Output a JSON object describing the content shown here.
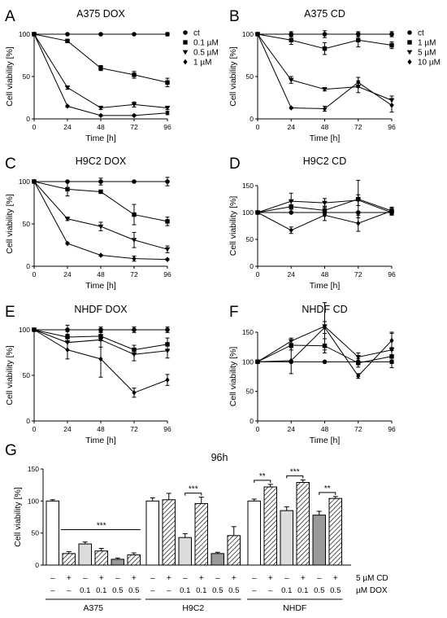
{
  "chart_data": [
    {
      "type": "line",
      "panel_letter": "A",
      "title": "A375 DOX",
      "xlabel": "Time [h]",
      "ylabel": "Cell viability [%]",
      "x": [
        0,
        24,
        48,
        72,
        96
      ],
      "xlim": [
        0,
        96
      ],
      "ylim": [
        0,
        100
      ],
      "xticks": [
        0,
        24,
        48,
        72,
        96
      ],
      "yticks": [
        0,
        50,
        100
      ],
      "legend": "right",
      "series": [
        {
          "name": "ct",
          "marker": "circle",
          "values": [
            100,
            100,
            100,
            100,
            100
          ],
          "err": [
            0,
            0,
            0,
            0,
            2
          ]
        },
        {
          "name": "0.1 µM",
          "marker": "square",
          "values": [
            100,
            92,
            60,
            52,
            43
          ],
          "err": [
            0,
            2,
            3,
            4,
            5
          ]
        },
        {
          "name": "0.5 µM",
          "marker": "triangle-down",
          "values": [
            100,
            37,
            13,
            17,
            13
          ],
          "err": [
            0,
            2,
            2,
            3,
            2
          ]
        },
        {
          "name": "1 µM",
          "marker": "diamond",
          "values": [
            100,
            15,
            4,
            4,
            7
          ],
          "err": [
            0,
            1,
            1,
            1,
            2
          ]
        }
      ]
    },
    {
      "type": "line",
      "panel_letter": "B",
      "title": "A375 CD",
      "xlabel": "Time [h]",
      "ylabel": "Cell viability [%]",
      "x": [
        0,
        24,
        48,
        72,
        96
      ],
      "xlim": [
        0,
        96
      ],
      "ylim": [
        0,
        100
      ],
      "xticks": [
        0,
        24,
        48,
        72,
        96
      ],
      "yticks": [
        0,
        50,
        100
      ],
      "legend": "right",
      "series": [
        {
          "name": "ct",
          "marker": "circle",
          "values": [
            100,
            100,
            100,
            100,
            100
          ],
          "err": [
            0,
            3,
            4,
            3,
            3
          ]
        },
        {
          "name": "1 µM",
          "marker": "square",
          "values": [
            100,
            93,
            83,
            93,
            87
          ],
          "err": [
            0,
            5,
            7,
            8,
            4
          ]
        },
        {
          "name": "5 µM",
          "marker": "triangle-down",
          "values": [
            100,
            46,
            35,
            38,
            22
          ],
          "err": [
            0,
            4,
            2,
            7,
            5
          ]
        },
        {
          "name": "10 µM",
          "marker": "diamond",
          "values": [
            100,
            13,
            12,
            43,
            16
          ],
          "err": [
            0,
            1,
            3,
            6,
            8
          ]
        }
      ]
    },
    {
      "type": "line",
      "panel_letter": "C",
      "title": "H9C2 DOX",
      "xlabel": "Time [h]",
      "ylabel": "Cell viability [%]",
      "x": [
        0,
        24,
        48,
        72,
        96
      ],
      "xlim": [
        0,
        96
      ],
      "ylim": [
        0,
        100
      ],
      "xticks": [
        0,
        24,
        48,
        72,
        96
      ],
      "yticks": [
        0,
        50,
        100
      ],
      "legend": "none",
      "series": [
        {
          "name": "ct",
          "marker": "circle",
          "values": [
            100,
            100,
            100,
            100,
            100
          ],
          "err": [
            0,
            0,
            4,
            0,
            5
          ]
        },
        {
          "name": "0.1 µM",
          "marker": "square",
          "values": [
            100,
            91,
            88,
            61,
            53
          ],
          "err": [
            0,
            8,
            2,
            12,
            5
          ]
        },
        {
          "name": "0.5 µM",
          "marker": "triangle-down",
          "values": [
            100,
            56,
            47,
            31,
            20
          ],
          "err": [
            0,
            2,
            5,
            9,
            4
          ]
        },
        {
          "name": "1 µM",
          "marker": "diamond",
          "values": [
            100,
            27,
            13,
            9,
            8
          ],
          "err": [
            0,
            1,
            1,
            3,
            1
          ]
        }
      ]
    },
    {
      "type": "line",
      "panel_letter": "D",
      "title": "H9C2 CD",
      "xlabel": "Time [h]",
      "ylabel": "Cell viability [%]",
      "x": [
        0,
        24,
        48,
        72,
        96
      ],
      "xlim": [
        0,
        96
      ],
      "ylim": [
        0,
        150
      ],
      "xticks": [
        0,
        24,
        48,
        72,
        96
      ],
      "yticks": [
        0,
        50,
        100,
        150
      ],
      "legend": "none",
      "series": [
        {
          "name": "ct",
          "marker": "circle",
          "values": [
            100,
            100,
            100,
            100,
            100
          ],
          "err": [
            0,
            0,
            0,
            0,
            3
          ]
        },
        {
          "name": "1 µM",
          "marker": "square",
          "values": [
            100,
            111,
            104,
            125,
            103
          ],
          "err": [
            0,
            10,
            8,
            35,
            5
          ]
        },
        {
          "name": "5 µM",
          "marker": "triangle-down",
          "values": [
            100,
            121,
            118,
            123,
            100
          ],
          "err": [
            0,
            15,
            8,
            10,
            5
          ]
        },
        {
          "name": "10 µM",
          "marker": "diamond",
          "values": [
            100,
            67,
            95,
            80,
            103
          ],
          "err": [
            0,
            6,
            10,
            15,
            7
          ]
        }
      ]
    },
    {
      "type": "line",
      "panel_letter": "E",
      "title": "NHDF DOX",
      "xlabel": "Time [h]",
      "ylabel": "Cell viability [%]",
      "x": [
        0,
        24,
        48,
        72,
        96
      ],
      "xlim": [
        0,
        96
      ],
      "ylim": [
        0,
        100
      ],
      "xticks": [
        0,
        24,
        48,
        72,
        96
      ],
      "yticks": [
        0,
        50,
        100
      ],
      "legend": "none",
      "series": [
        {
          "name": "ct",
          "marker": "circle",
          "values": [
            100,
            100,
            100,
            100,
            100
          ],
          "err": [
            0,
            5,
            3,
            3,
            3
          ]
        },
        {
          "name": "0.1 µM",
          "marker": "square",
          "values": [
            100,
            92,
            93,
            78,
            84
          ],
          "err": [
            0,
            6,
            5,
            5,
            7
          ]
        },
        {
          "name": "0.5 µM",
          "marker": "triangle-down",
          "values": [
            100,
            86,
            89,
            73,
            77
          ],
          "err": [
            0,
            8,
            8,
            7,
            8
          ]
        },
        {
          "name": "1 µM",
          "marker": "diamond",
          "values": [
            100,
            78,
            68,
            31,
            45
          ],
          "err": [
            0,
            10,
            20,
            5,
            6
          ]
        }
      ]
    },
    {
      "type": "line",
      "panel_letter": "F",
      "title": "NHDF CD",
      "xlabel": "Time [h]",
      "ylabel": "Cell viability [%]",
      "x": [
        0,
        24,
        48,
        72,
        96
      ],
      "xlim": [
        0,
        96
      ],
      "ylim": [
        0,
        150
      ],
      "xticks": [
        0,
        24,
        48,
        72,
        96
      ],
      "yticks": [
        0,
        50,
        100,
        150
      ],
      "legend": "none",
      "series": [
        {
          "name": "ct",
          "marker": "circle",
          "values": [
            100,
            100,
            100,
            100,
            100
          ],
          "err": [
            0,
            0,
            0,
            0,
            3
          ]
        },
        {
          "name": "1 µM",
          "marker": "square",
          "values": [
            100,
            128,
            127,
            98,
            109
          ],
          "err": [
            0,
            8,
            12,
            7,
            10
          ]
        },
        {
          "name": "5 µM",
          "marker": "triangle-down",
          "values": [
            100,
            135,
            160,
            108,
            120
          ],
          "err": [
            0,
            5,
            40,
            7,
            30
          ]
        },
        {
          "name": "10 µM",
          "marker": "diamond",
          "values": [
            100,
            102,
            158,
            76,
            136
          ],
          "err": [
            0,
            22,
            10,
            4,
            12
          ]
        }
      ]
    },
    {
      "type": "bar",
      "panel_letter": "G",
      "title": "96h",
      "ylabel": "Cell viability [%]",
      "ylim": [
        0,
        150
      ],
      "yticks": [
        0,
        50,
        100,
        150
      ],
      "row_labels": [
        "5 µM CD",
        "µM DOX"
      ],
      "groups": [
        {
          "name": "A375",
          "bars": [
            {
              "cd": "–",
              "dox": "–",
              "value": 100,
              "err": 2,
              "fill": "white"
            },
            {
              "cd": "+",
              "dox": "–",
              "value": 18,
              "err": 3,
              "fill": "hatch"
            },
            {
              "cd": "–",
              "dox": "0.1",
              "value": 33,
              "err": 3,
              "fill": "lightgray"
            },
            {
              "cd": "+",
              "dox": "0.1",
              "value": 22,
              "err": 4,
              "fill": "hatch"
            },
            {
              "cd": "–",
              "dox": "0.5",
              "value": 9,
              "err": 2,
              "fill": "gray"
            },
            {
              "cd": "+",
              "dox": "0.5",
              "value": 16,
              "err": 3,
              "fill": "hatch"
            }
          ]
        },
        {
          "name": "H9C2",
          "bars": [
            {
              "cd": "–",
              "dox": "–",
              "value": 100,
              "err": 5,
              "fill": "white"
            },
            {
              "cd": "+",
              "dox": "–",
              "value": 102,
              "err": 10,
              "fill": "hatch"
            },
            {
              "cd": "–",
              "dox": "0.1",
              "value": 43,
              "err": 6,
              "fill": "lightgray"
            },
            {
              "cd": "+",
              "dox": "0.1",
              "value": 96,
              "err": 10,
              "fill": "hatch"
            },
            {
              "cd": "–",
              "dox": "0.5",
              "value": 18,
              "err": 2,
              "fill": "gray"
            },
            {
              "cd": "+",
              "dox": "0.5",
              "value": 46,
              "err": 14,
              "fill": "hatch"
            }
          ]
        },
        {
          "name": "NHDF",
          "bars": [
            {
              "cd": "–",
              "dox": "–",
              "value": 100,
              "err": 3,
              "fill": "white"
            },
            {
              "cd": "+",
              "dox": "–",
              "value": 122,
              "err": 4,
              "fill": "hatch"
            },
            {
              "cd": "–",
              "dox": "0.1",
              "value": 85,
              "err": 6,
              "fill": "lightgray"
            },
            {
              "cd": "+",
              "dox": "0.1",
              "value": 129,
              "err": 4,
              "fill": "hatch"
            },
            {
              "cd": "–",
              "dox": "0.5",
              "value": 78,
              "err": 6,
              "fill": "gray"
            },
            {
              "cd": "+",
              "dox": "0.5",
              "value": 104,
              "err": 3,
              "fill": "hatch"
            }
          ]
        }
      ],
      "annotations": [
        {
          "text": "***",
          "type": "line",
          "group": 0,
          "from": 1,
          "to": 5
        },
        {
          "text": "***",
          "type": "bracket",
          "group": 1,
          "from": 2,
          "to": 3
        },
        {
          "text": "**",
          "type": "bracket",
          "group": 2,
          "from": 0,
          "to": 1
        },
        {
          "text": "***",
          "type": "bracket",
          "group": 2,
          "from": 2,
          "to": 3
        },
        {
          "text": "**",
          "type": "bracket",
          "group": 2,
          "from": 4,
          "to": 5
        }
      ]
    }
  ],
  "colors": {
    "ink": "#000000",
    "white_fill": "#ffffff",
    "lightgray_fill": "#dcdcdc",
    "gray_fill": "#9a9a9a",
    "hatch_bg": "#ffffff"
  }
}
